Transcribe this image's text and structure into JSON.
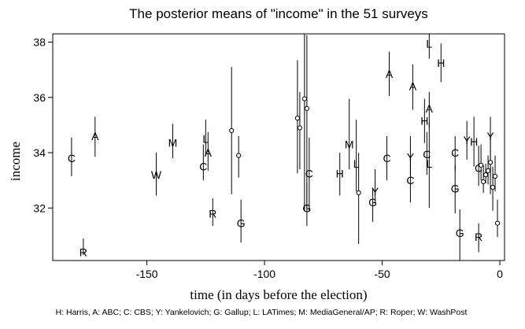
{
  "chart_data": {
    "type": "scatter",
    "title": "The posterior means of \"income\" in the 51 surveys",
    "xlabel": "time (in days before the election)",
    "ylabel": "income",
    "footnote": "H: Harris, A: ABC; C: CBS; Y: Yankelovich; G: Gallup; L: LATimes; M: MediaGeneral/AP; R: Roper; W: WashPost",
    "xlim": [
      -190,
      2
    ],
    "ylim": [
      30.1,
      38.3
    ],
    "x_ticks": [
      -150,
      -100,
      -50,
      0
    ],
    "x_tick_labels": [
      "-150",
      "-100",
      "-50",
      "0"
    ],
    "y_ticks": [
      32,
      34,
      36,
      38
    ],
    "y_tick_labels": [
      "32",
      "34",
      "36",
      "38"
    ],
    "grid": false,
    "points": [
      {
        "x": -182,
        "y": 33.8,
        "lo": 33.15,
        "hi": 34.55,
        "label": "C"
      },
      {
        "x": -177,
        "y": 30.4,
        "lo": 30.3,
        "hi": 30.9,
        "label": "R"
      },
      {
        "x": -172,
        "y": 34.6,
        "lo": 33.85,
        "hi": 35.3,
        "label": "A"
      },
      {
        "x": -146,
        "y": 33.2,
        "lo": 32.45,
        "hi": 34.0,
        "label": "W"
      },
      {
        "x": -139,
        "y": 34.35,
        "lo": 33.8,
        "hi": 35.05,
        "label": "M"
      },
      {
        "x": -126,
        "y": 33.5,
        "lo": 33.0,
        "hi": 34.3,
        "label": "C"
      },
      {
        "x": -125,
        "y": 34.5,
        "lo": 33.9,
        "hi": 35.2,
        "label": "L"
      },
      {
        "x": -124,
        "y": 34.0,
        "lo": 33.35,
        "hi": 34.75,
        "label": "A"
      },
      {
        "x": -122,
        "y": 31.8,
        "lo": 31.35,
        "hi": 32.35,
        "label": "R"
      },
      {
        "x": -114,
        "y": 34.8,
        "lo": 32.5,
        "hi": 37.1,
        "label": ""
      },
      {
        "x": -111,
        "y": 33.9,
        "lo": 33.1,
        "hi": 34.6,
        "label": ""
      },
      {
        "x": -110,
        "y": 31.45,
        "lo": 30.75,
        "hi": 32.3,
        "label": "G"
      },
      {
        "x": -86,
        "y": 35.25,
        "lo": 33.25,
        "hi": 37.35,
        "label": ""
      },
      {
        "x": -85,
        "y": 34.9,
        "lo": 33.4,
        "hi": 36.2,
        "label": ""
      },
      {
        "x": -83,
        "y": 35.95,
        "lo": 31.9,
        "hi": 38.3,
        "label": ""
      },
      {
        "x": -82,
        "y": 35.6,
        "lo": 32.0,
        "hi": 38.25,
        "label": ""
      },
      {
        "x": -81,
        "y": 33.25,
        "lo": 31.9,
        "hi": 34.55,
        "label": "C"
      },
      {
        "x": -82,
        "y": 32.0,
        "lo": 31.35,
        "hi": 32.9,
        "label": "G"
      },
      {
        "x": -68,
        "y": 33.25,
        "lo": 32.45,
        "hi": 34.0,
        "label": "H"
      },
      {
        "x": -64,
        "y": 34.3,
        "lo": 33.4,
        "hi": 35.95,
        "label": "M"
      },
      {
        "x": -61,
        "y": 33.6,
        "lo": 32.6,
        "hi": 35.2,
        "label": "L"
      },
      {
        "x": -60,
        "y": 32.55,
        "lo": 30.7,
        "hi": 34.0,
        "label": ""
      },
      {
        "x": -54,
        "y": 32.2,
        "lo": 31.5,
        "hi": 32.7,
        "label": "G"
      },
      {
        "x": -53,
        "y": 32.6,
        "lo": 32.2,
        "hi": 33.4,
        "label": "Y"
      },
      {
        "x": -48,
        "y": 33.8,
        "lo": 33.0,
        "hi": 34.6,
        "label": "C"
      },
      {
        "x": -47,
        "y": 36.85,
        "lo": 36.05,
        "hi": 37.65,
        "label": "A"
      },
      {
        "x": -38,
        "y": 33.0,
        "lo": 32.2,
        "hi": 33.85,
        "label": "C"
      },
      {
        "x": -38,
        "y": 33.85,
        "lo": 33.2,
        "hi": 34.6,
        "label": "Y"
      },
      {
        "x": -37,
        "y": 36.4,
        "lo": 35.55,
        "hi": 37.2,
        "label": "A"
      },
      {
        "x": -32,
        "y": 35.15,
        "lo": 34.35,
        "hi": 35.95,
        "label": "H"
      },
      {
        "x": -31,
        "y": 33.95,
        "lo": 33.2,
        "hi": 34.75,
        "label": "C"
      },
      {
        "x": -30,
        "y": 35.6,
        "lo": 34.9,
        "hi": 36.2,
        "label": "A"
      },
      {
        "x": -30,
        "y": 37.95,
        "lo": 37.4,
        "hi": 38.3,
        "label": "L"
      },
      {
        "x": -30,
        "y": 33.6,
        "lo": 32.0,
        "hi": 35.1,
        "label": "L"
      },
      {
        "x": -25,
        "y": 37.25,
        "lo": 36.55,
        "hi": 37.95,
        "label": "H"
      },
      {
        "x": -19,
        "y": 34.0,
        "lo": 33.35,
        "hi": 34.6,
        "label": "C"
      },
      {
        "x": -19,
        "y": 32.7,
        "lo": 31.8,
        "hi": 33.55,
        "label": "G"
      },
      {
        "x": -17,
        "y": 31.1,
        "lo": 30.1,
        "hi": 31.95,
        "label": "G"
      },
      {
        "x": -14,
        "y": 34.45,
        "lo": 33.75,
        "hi": 35.15,
        "label": "Y"
      },
      {
        "x": -11,
        "y": 34.4,
        "lo": 33.5,
        "hi": 35.3,
        "label": "H"
      },
      {
        "x": -9,
        "y": 33.45,
        "lo": 32.8,
        "hi": 34.25,
        "label": "C"
      },
      {
        "x": -9,
        "y": 30.95,
        "lo": 30.4,
        "hi": 31.45,
        "label": "R"
      },
      {
        "x": -8,
        "y": 33.55,
        "lo": 33.0,
        "hi": 34.3,
        "label": ""
      },
      {
        "x": -7,
        "y": 32.95,
        "lo": 32.55,
        "hi": 33.55,
        "label": ""
      },
      {
        "x": -6,
        "y": 33.2,
        "lo": 32.9,
        "hi": 33.6,
        "label": ""
      },
      {
        "x": -5,
        "y": 33.35,
        "lo": 32.85,
        "hi": 33.9,
        "label": ""
      },
      {
        "x": -4,
        "y": 34.6,
        "lo": 33.2,
        "hi": 35.3,
        "label": "Y"
      },
      {
        "x": -4,
        "y": 33.65,
        "lo": 32.5,
        "hi": 34.6,
        "label": ""
      },
      {
        "x": -3,
        "y": 32.75,
        "lo": 31.9,
        "hi": 33.5,
        "label": ""
      },
      {
        "x": -2,
        "y": 33.15,
        "lo": 32.6,
        "hi": 33.9,
        "label": ""
      },
      {
        "x": -1,
        "y": 31.45,
        "lo": 30.95,
        "hi": 32.3,
        "label": ""
      }
    ]
  }
}
